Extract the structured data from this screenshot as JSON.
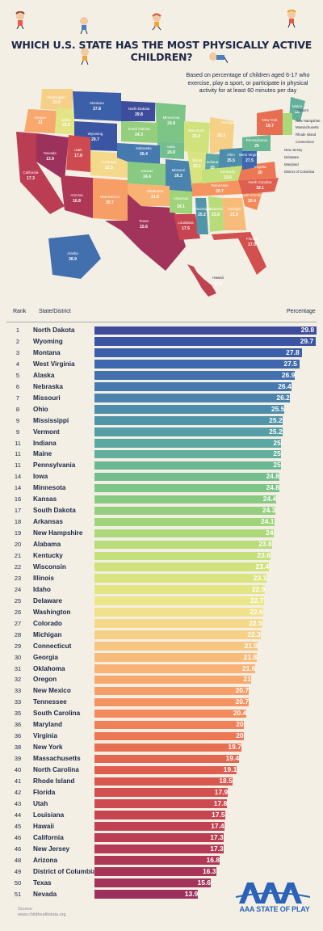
{
  "header": {
    "title": "WHICH U.S. STATE HAS THE MOST PHYSICALLY ACTIVE CHILDREN?",
    "subtitle": "Based on percentage of children aged 6-17 who exercise, play a sport, or participate in physical activity for at least 60 minutes per day"
  },
  "table": {
    "rank_header": "Rank",
    "state_header": "State/District",
    "percentage_header": "Percentage"
  },
  "chart_data": {
    "type": "bar",
    "orientation": "horizontal",
    "xlim": [
      0,
      30
    ],
    "ranks": [
      "1",
      "2",
      "3",
      "4",
      "5",
      "6",
      "7",
      "8",
      "9",
      "9",
      "11",
      "11",
      "11",
      "14",
      "14",
      "16",
      "17",
      "18",
      "19",
      "20",
      "21",
      "22",
      "23",
      "24",
      "25",
      "26",
      "27",
      "28",
      "29",
      "30",
      "31",
      "32",
      "33",
      "33",
      "35",
      "36",
      "36",
      "38",
      "39",
      "40",
      "41",
      "42",
      "43",
      "44",
      "45",
      "46",
      "46",
      "48",
      "49",
      "50",
      "51"
    ],
    "categories": [
      "North Dakota",
      "Wyoming",
      "Montana",
      "West Virginia",
      "Alaska",
      "Nebraska",
      "Missouri",
      "Ohio",
      "Mississippi",
      "Vermont",
      "Indiana",
      "Maine",
      "Pennsylvania",
      "Iowa",
      "Minnesota",
      "Kansas",
      "South Dakota",
      "Arkansas",
      "New Hampshire",
      "Alabama",
      "Kentucky",
      "Wisconsin",
      "Illinois",
      "Idaho",
      "Delaware",
      "Washington",
      "Colorado",
      "Michigan",
      "Connecticut",
      "Georgia",
      "Oklahoma",
      "Oregon",
      "New Mexico",
      "Tennessee",
      "South Carolina",
      "Maryland",
      "Virginia",
      "New York",
      "Massachusetts",
      "North Carolina",
      "Rhode Island",
      "Florida",
      "Utah",
      "Louisiana",
      "Hawaii",
      "California",
      "New Jersey",
      "Arizona",
      "District of Columbia",
      "Texas",
      "Nevada"
    ],
    "values": [
      29.8,
      29.7,
      27.8,
      27.5,
      26.9,
      26.4,
      26.2,
      25.5,
      25.2,
      25.2,
      25,
      25,
      25,
      24.8,
      24.8,
      24.4,
      24.3,
      24.1,
      24,
      23.8,
      23.6,
      23.4,
      23.1,
      22.9,
      22.7,
      22.6,
      22.5,
      22.3,
      21.9,
      21.8,
      21.6,
      21,
      20.7,
      20.7,
      20.4,
      20,
      20,
      19.7,
      19.4,
      19.1,
      18.5,
      17.9,
      17.8,
      17.5,
      17.4,
      17.3,
      17.3,
      16.8,
      16.3,
      15.6,
      13.9
    ],
    "colors": [
      "#3e4d9b",
      "#3c55a3",
      "#3b5fa9",
      "#3e68ad",
      "#4270ae",
      "#4679ae",
      "#4a83ad",
      "#4d8dab",
      "#5095a8",
      "#559ea5",
      "#5ba7a1",
      "#62af9b",
      "#6ab794",
      "#73be8d",
      "#7dc487",
      "#88ca82",
      "#94cf7e",
      "#a0d47b",
      "#acd87a",
      "#b8dc79",
      "#c4e07a",
      "#cfe27c",
      "#d9e480",
      "#e3e585",
      "#ebe68a",
      "#f1e18c",
      "#f4d98b",
      "#f6d087",
      "#f7c681",
      "#f8bc7a",
      "#f8b273",
      "#f8a86c",
      "#f79e66",
      "#f59460",
      "#f38a5b",
      "#f08057",
      "#ec7754",
      "#e86e52",
      "#e36650",
      "#de5e4f",
      "#d8574f",
      "#d2504f",
      "#cc4a50",
      "#c64551",
      "#c04152",
      "#ba3d53",
      "#b43a55",
      "#ae3756",
      "#a83558",
      "#a2335a",
      "#9c315c"
    ]
  },
  "map": {
    "labels": [
      {
        "state": "Washington",
        "value": "22.6"
      },
      {
        "state": "Oregon",
        "value": "21"
      },
      {
        "state": "Idaho",
        "value": "22.9"
      },
      {
        "state": "Montana",
        "value": "27.8"
      },
      {
        "state": "North Dakota",
        "value": "29.8"
      },
      {
        "state": "Minnesota",
        "value": "24.8"
      },
      {
        "state": "Wisconsin",
        "value": "23.4"
      },
      {
        "state": "Michigan",
        "value": "22.3"
      },
      {
        "state": "Wyoming",
        "value": "29.7"
      },
      {
        "state": "South Dakota",
        "value": "24.3"
      },
      {
        "state": "Iowa",
        "value": "24.8"
      },
      {
        "state": "Nevada",
        "value": "13.9"
      },
      {
        "state": "Utah",
        "value": "17.8"
      },
      {
        "state": "Colorado",
        "value": "22.5"
      },
      {
        "state": "Nebraska",
        "value": "26.4"
      },
      {
        "state": "Kansas",
        "value": "24.4"
      },
      {
        "state": "Missouri",
        "value": "26.2"
      },
      {
        "state": "Illinois",
        "value": "23.1"
      },
      {
        "state": "Indiana",
        "value": "25"
      },
      {
        "state": "Ohio",
        "value": "25.5"
      },
      {
        "state": "California",
        "value": "17.3"
      },
      {
        "state": "Arizona",
        "value": "16.8"
      },
      {
        "state": "New Mexico",
        "value": "20.7"
      },
      {
        "state": "Oklahoma",
        "value": "21.6"
      },
      {
        "state": "Arkansas",
        "value": "24.1"
      },
      {
        "state": "Tennessee",
        "value": "20.7"
      },
      {
        "state": "Kentucky",
        "value": "23.6"
      },
      {
        "state": "Texas",
        "value": "15.6"
      },
      {
        "state": "Louisiana",
        "value": "17.5"
      },
      {
        "state": "Mississippi",
        "value": "25.2"
      },
      {
        "state": "Alabama",
        "value": "23.8"
      },
      {
        "state": "Georgia",
        "value": "21.8"
      },
      {
        "state": "Florida",
        "value": "17.9"
      },
      {
        "state": "South Carolina",
        "value": "20.4"
      },
      {
        "state": "North Carolina",
        "value": "19.1"
      },
      {
        "state": "Virginia",
        "value": "20"
      },
      {
        "state": "West Virginia",
        "value": "27.5"
      },
      {
        "state": "Pennsylvania",
        "value": "25"
      },
      {
        "state": "New York",
        "value": "19.7"
      },
      {
        "state": "Maine",
        "value": "25"
      },
      {
        "state": "Alaska",
        "value": "26.9"
      },
      {
        "state": "Hawaii",
        "value": "17.4"
      }
    ],
    "callouts": [
      "Vermont",
      "New Hampshire",
      "Massachusetts",
      "Rhode Island",
      "Connecticut",
      "New Jersey",
      "Delaware",
      "Maryland",
      "District of Columbia"
    ]
  },
  "footer": {
    "source_label": "Source:",
    "source_url": "www.childhealthdata.org",
    "logo_text": "AAA STATE OF PLAY"
  }
}
